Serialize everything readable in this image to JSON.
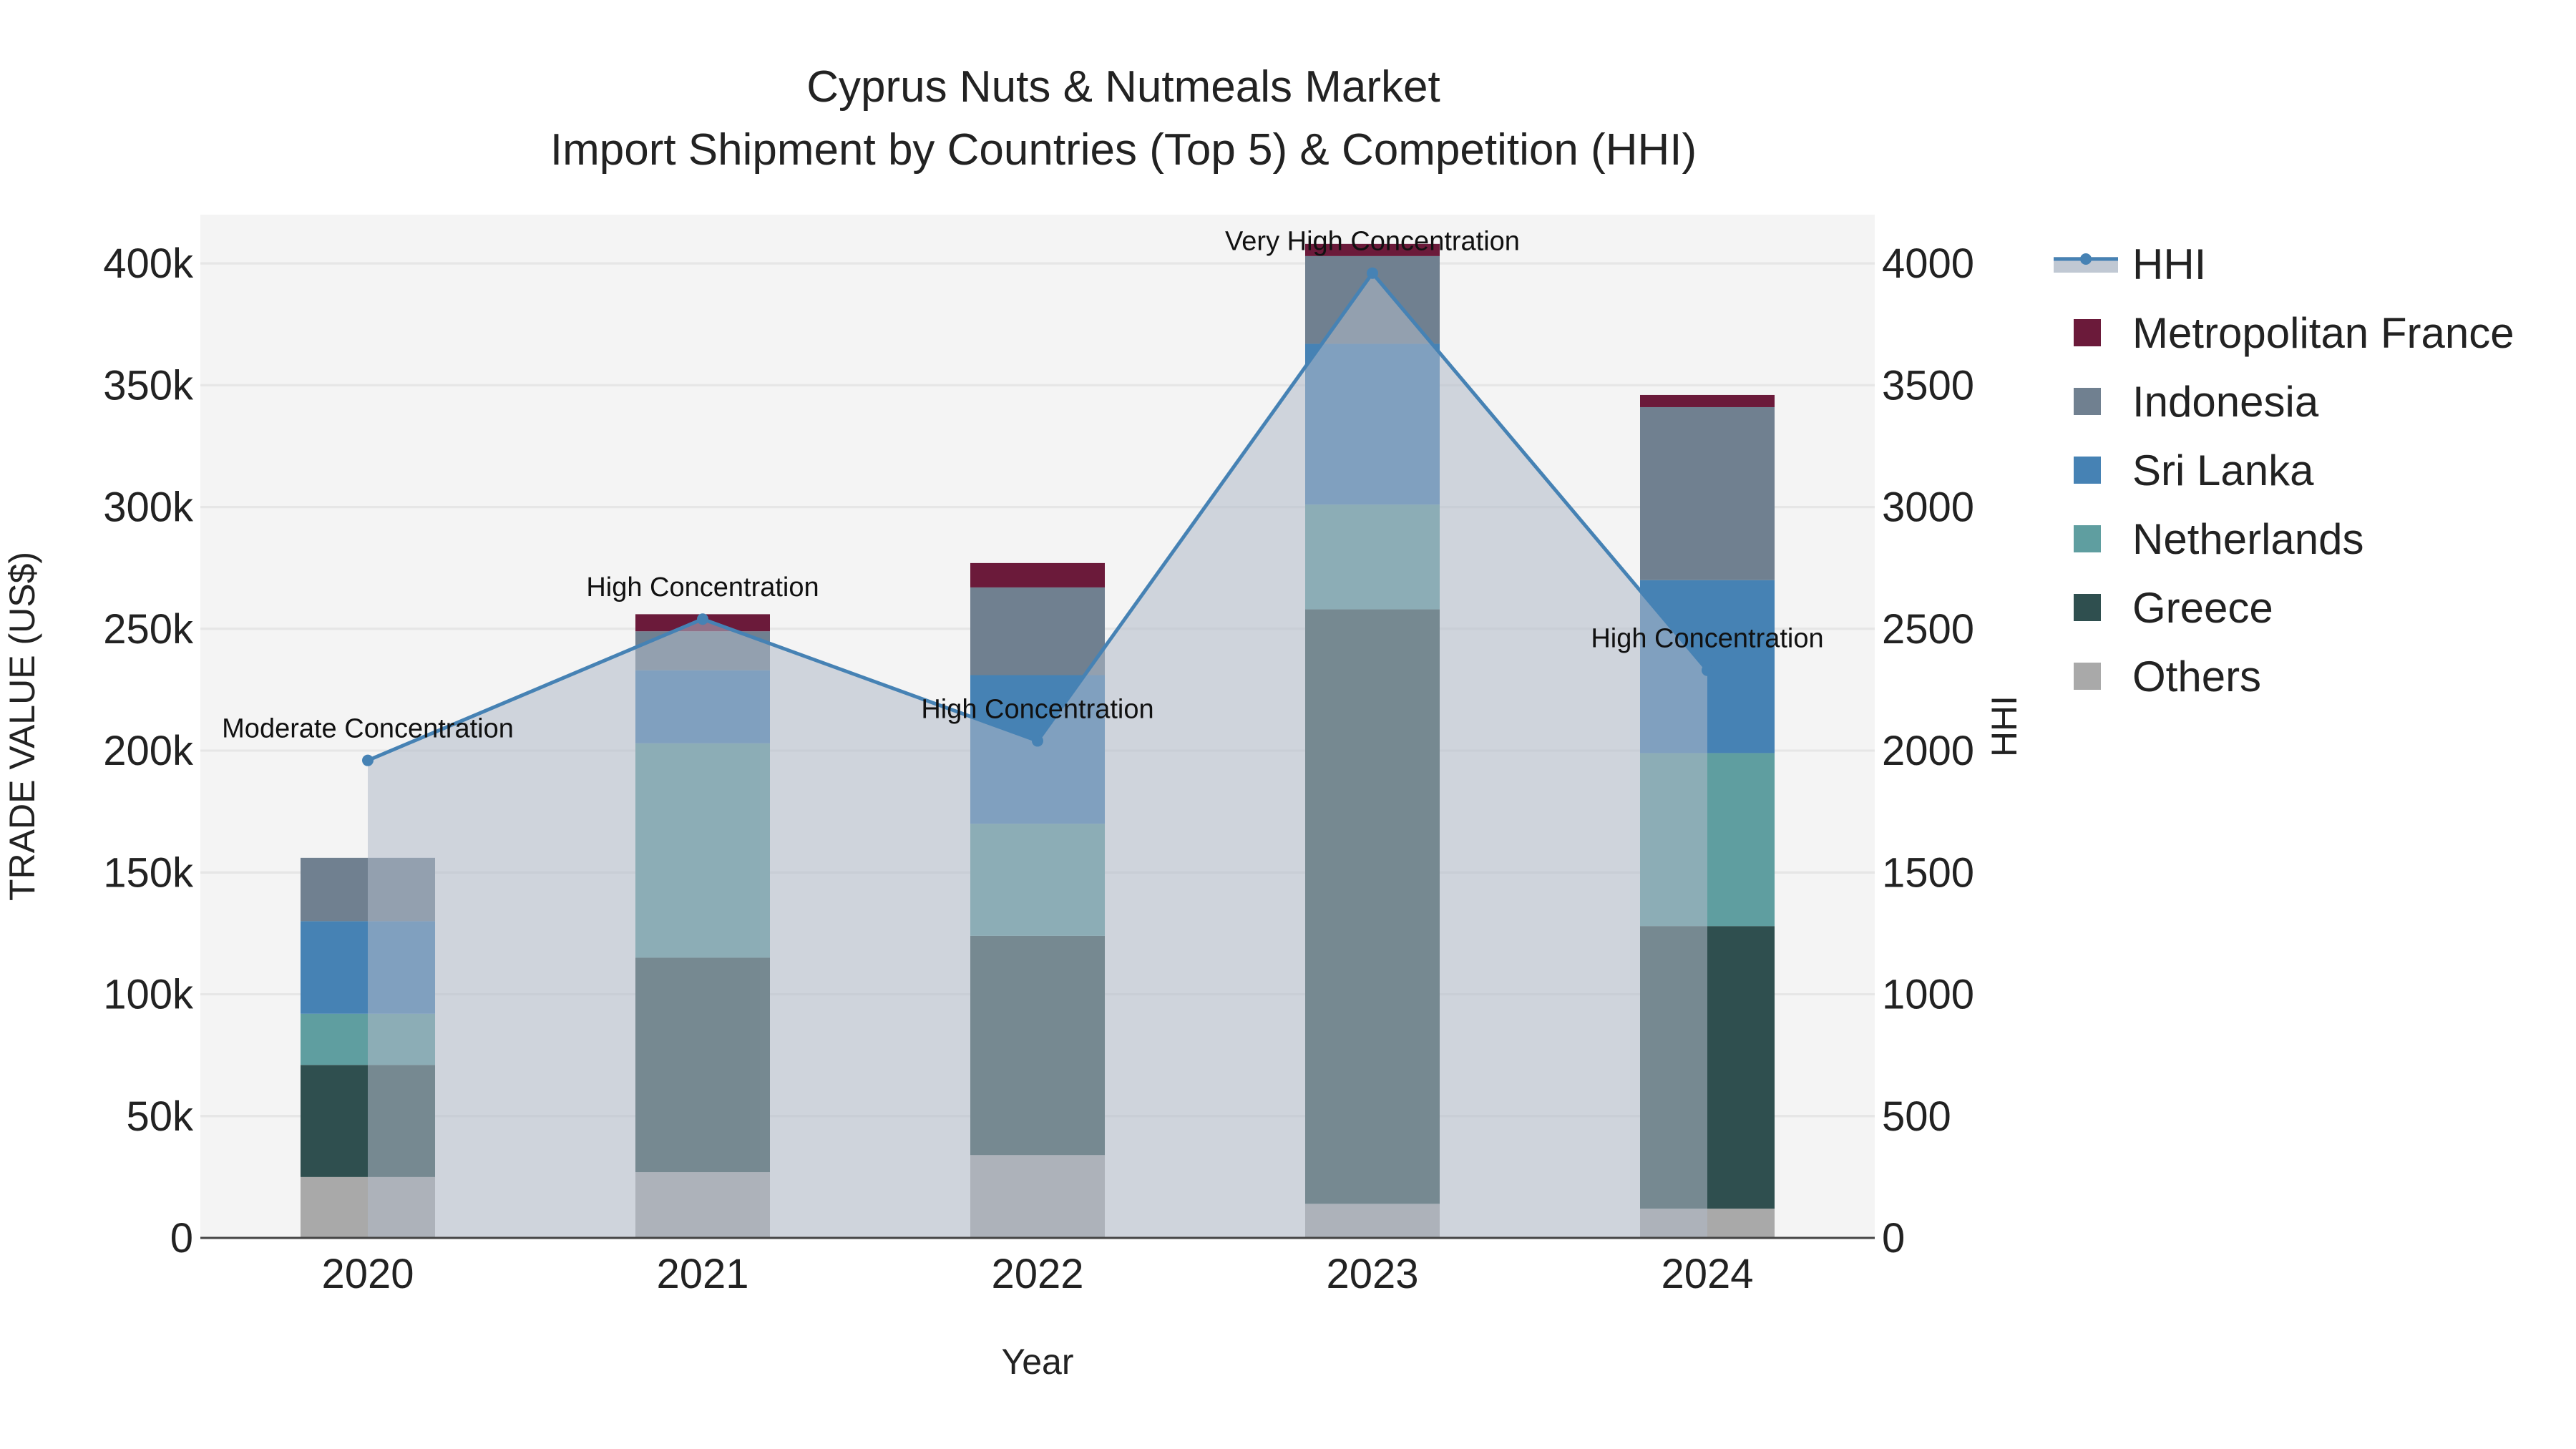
{
  "chart_data": {
    "type": "bar",
    "title": "Cyprus Nuts & Nutmeals Market",
    "subtitle": "Import Shipment by Countries (Top 5) & Competition (HHI)",
    "xlabel": "Year",
    "ylabel": "TRADE VALUE (US$)",
    "y2label": "HHI",
    "categories": [
      "2020",
      "2021",
      "2022",
      "2023",
      "2024"
    ],
    "ylim": [
      0,
      420000
    ],
    "y2lim": [
      0,
      4200
    ],
    "y_ticks": [
      0,
      50000,
      100000,
      150000,
      200000,
      250000,
      300000,
      350000,
      400000
    ],
    "y_tick_labels": [
      "0",
      "50k",
      "100k",
      "150k",
      "200k",
      "250k",
      "300k",
      "350k",
      "400k"
    ],
    "y2_ticks": [
      0,
      500,
      1000,
      1500,
      2000,
      2500,
      3000,
      3500,
      4000
    ],
    "y2_tick_labels": [
      "0",
      "500",
      "1000",
      "1500",
      "2000",
      "2500",
      "3000",
      "3500",
      "4000"
    ],
    "series": [
      {
        "name": "Others",
        "color": "#a9a9a9",
        "values": [
          25000,
          27000,
          34000,
          14000,
          12000
        ]
      },
      {
        "name": "Greece",
        "color": "#2f4f4f",
        "values": [
          46000,
          88000,
          90000,
          244000,
          116000
        ]
      },
      {
        "name": "Netherlands",
        "color": "#5f9ea0",
        "values": [
          21000,
          88000,
          46000,
          43000,
          71000
        ]
      },
      {
        "name": "Sri Lanka",
        "color": "#4682b4",
        "values": [
          38000,
          30000,
          61000,
          66000,
          71000
        ]
      },
      {
        "name": "Indonesia",
        "color": "#708090",
        "values": [
          26000,
          16000,
          36000,
          36000,
          71000
        ]
      },
      {
        "name": "Metropolitan France",
        "color": "#6b1a3a",
        "values": [
          0,
          7000,
          10000,
          5000,
          5000
        ]
      }
    ],
    "hhi": {
      "name": "HHI",
      "color": "#4682b4",
      "values": [
        1960,
        2540,
        2040,
        3960,
        2330
      ],
      "annotations": [
        "Moderate Concentration",
        "High Concentration",
        "High Concentration",
        "Very High Concentration",
        "High Concentration"
      ]
    },
    "legend": [
      "HHI",
      "Metropolitan France",
      "Indonesia",
      "Sri Lanka",
      "Netherlands",
      "Greece",
      "Others"
    ],
    "legend_position": "right"
  }
}
